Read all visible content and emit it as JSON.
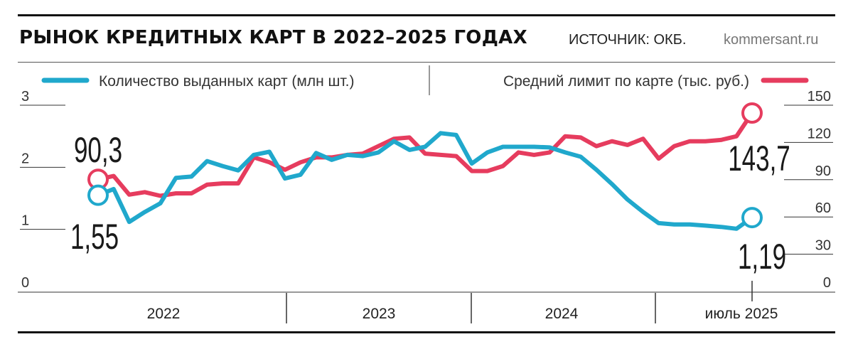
{
  "header": {
    "title": "РЫНОК КРЕДИТНЫХ КАРТ В 2022–2025 ГОДАХ",
    "source": "ИСТОЧНИК: ОКБ.",
    "site": "kommersant.ru"
  },
  "chart_data": {
    "type": "line",
    "title": "РЫНОК КРЕДИТНЫХ КАРТ В 2022–2025 ГОДАХ",
    "x_labels": [
      "2022",
      "2023",
      "2024",
      "июль 2025"
    ],
    "y_left": {
      "ticks": [
        "0",
        "1",
        "2",
        "3"
      ],
      "ylim": [
        0,
        3
      ]
    },
    "y_right": {
      "ticks": [
        "0",
        "30",
        "60",
        "90",
        "120",
        "150"
      ],
      "ylim": [
        0,
        150
      ]
    },
    "series": [
      {
        "name": "Количество выданных карт (млн шт.)",
        "axis": "left",
        "color": "#20a8cc",
        "values": [
          1.55,
          1.65,
          1.12,
          1.28,
          1.42,
          1.83,
          1.85,
          2.1,
          2.02,
          1.95,
          2.2,
          2.25,
          1.82,
          1.88,
          2.23,
          2.12,
          2.2,
          2.18,
          2.24,
          2.42,
          2.28,
          2.33,
          2.55,
          2.52,
          2.06,
          2.24,
          2.33,
          2.33,
          2.33,
          2.32,
          2.24,
          2.17,
          1.96,
          1.73,
          1.48,
          1.28,
          1.1,
          1.08,
          1.08,
          1.06,
          1.04,
          1.01,
          1.19
        ],
        "start_label": "1,55",
        "end_label": "1,19"
      },
      {
        "name": "Средний лимит по карте (тыс. руб.)",
        "axis": "right",
        "color": "#e63c5e",
        "values": [
          90.3,
          93,
          78,
          80,
          77,
          79,
          79,
          86,
          87,
          87,
          108,
          104,
          98,
          104,
          108,
          108,
          110,
          111,
          117,
          123,
          124,
          111,
          110,
          109,
          97,
          97,
          101,
          112,
          110,
          112,
          125,
          124,
          117,
          121,
          118,
          123,
          107,
          117,
          121,
          121,
          122,
          125,
          143.7
        ],
        "start_label": "90,3",
        "end_label": "143,7"
      }
    ]
  }
}
